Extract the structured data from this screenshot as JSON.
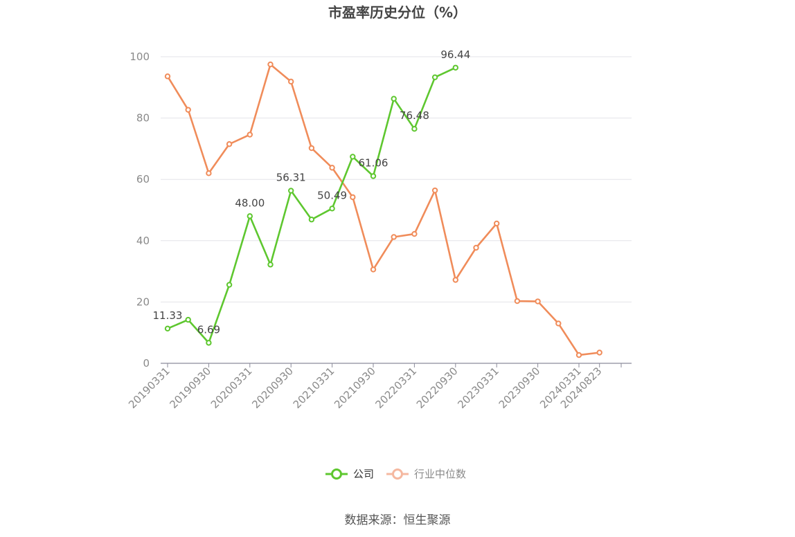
{
  "title": "市盈率历史分位（%）",
  "source": "数据来源：恒生聚源",
  "legend": [
    {
      "label": "公司",
      "color": "#5ec72f",
      "active": true
    },
    {
      "label": "行业中位数",
      "color": "#f5b8a0",
      "active": false
    }
  ],
  "chart_data": {
    "type": "line",
    "title": "市盈率历史分位（%）",
    "xlabel": "",
    "ylabel": "",
    "ylim": [
      0,
      100
    ],
    "yticks": [
      0,
      20,
      40,
      60,
      80,
      100
    ],
    "grid": true,
    "legend_position": "bottom",
    "x": [
      "20190331",
      "20190630",
      "20190930",
      "20191231",
      "20200331",
      "20200630",
      "20200930",
      "20201231",
      "20210331",
      "20210630",
      "20210930",
      "20211231",
      "20220331",
      "20220630",
      "20220930",
      "20221231",
      "20230331",
      "20230630",
      "20230930",
      "20231231",
      "20240331",
      "20240823"
    ],
    "xtick_labels": [
      "20190331",
      "20190930",
      "20200331",
      "20200930",
      "20210331",
      "20210930",
      "20220331",
      "20220930",
      "20230331",
      "20230930",
      "20240331",
      "20240823"
    ],
    "series": [
      {
        "name": "公司",
        "color": "#5ec72f",
        "values": [
          11.33,
          14.2,
          6.69,
          25.6,
          48.0,
          32.2,
          56.31,
          46.9,
          50.49,
          67.4,
          61.06,
          86.3,
          76.48,
          93.3,
          96.44,
          null,
          null,
          null,
          null,
          null,
          null,
          null
        ],
        "labels": {
          "0": "11.33",
          "2": "6.69",
          "4": "48.00",
          "6": "56.31",
          "8": "50.49",
          "10": "61.06",
          "12": "76.48",
          "14": "96.44"
        }
      },
      {
        "name": "行业中位数",
        "color": "#f08c5a",
        "values": [
          93.6,
          82.7,
          62.0,
          71.5,
          74.6,
          97.5,
          91.9,
          70.2,
          63.8,
          54.2,
          30.6,
          41.2,
          42.2,
          56.4,
          27.2,
          37.7,
          45.6,
          20.3,
          20.2,
          13.0,
          2.7,
          3.5
        ]
      }
    ]
  }
}
